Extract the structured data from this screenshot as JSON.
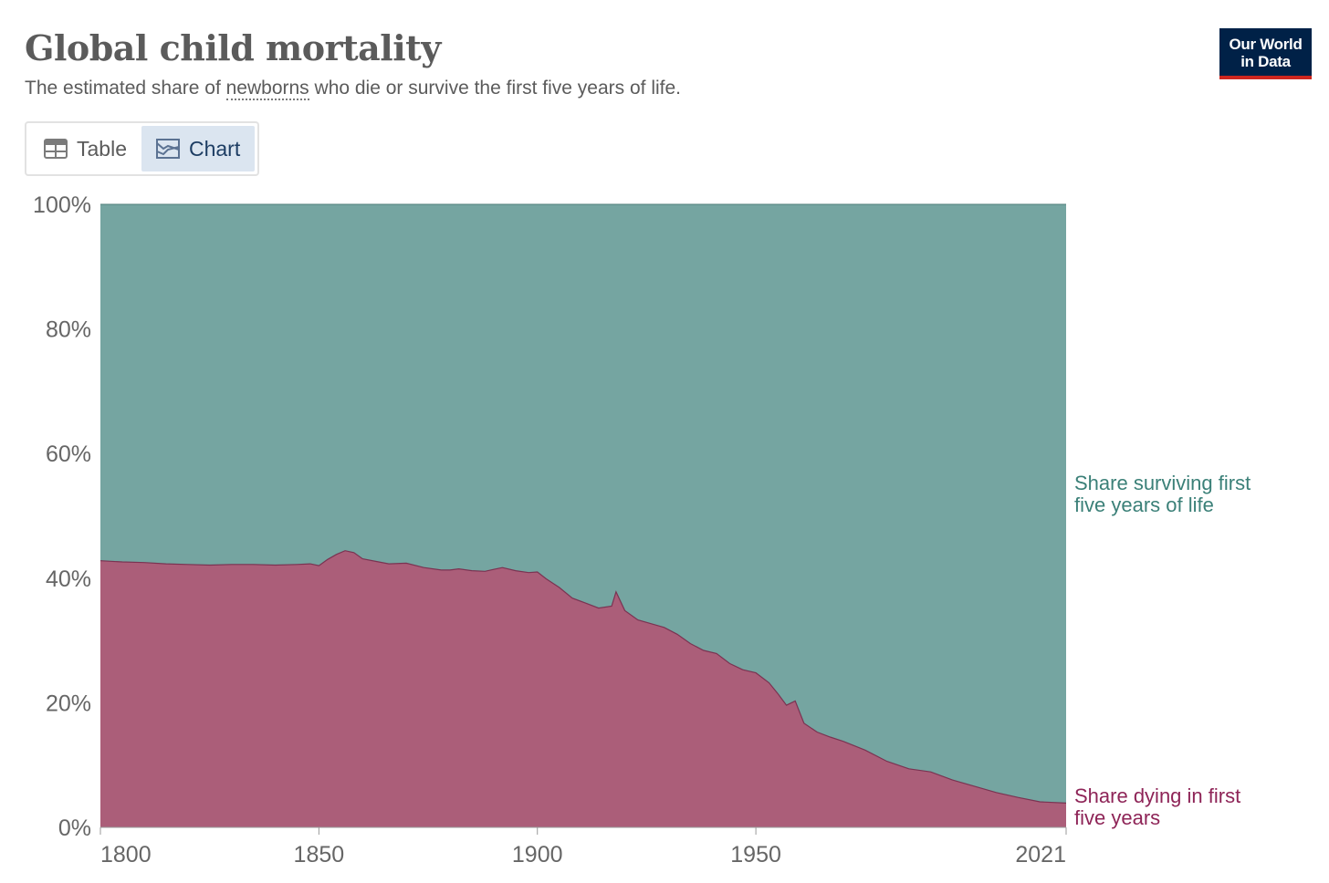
{
  "header": {
    "title": "Global child mortality",
    "subtitle_before": "The estimated share of ",
    "subtitle_term": "newborns",
    "subtitle_after": " who die or survive the first five years of life.",
    "logo_line1": "Our World",
    "logo_line2": "in Data"
  },
  "tabs": [
    {
      "label": "Table",
      "icon": "table-icon",
      "active": false
    },
    {
      "label": "Chart",
      "icon": "chart-icon",
      "active": true
    }
  ],
  "colors": {
    "surviving": "#75a5a1",
    "dying": "#ab5e79",
    "surviving_label": "#3b8078",
    "dying_label": "#8e2457"
  },
  "chart_data": {
    "type": "area",
    "stacked": true,
    "relative": true,
    "ylim": [
      0,
      100
    ],
    "xlim": [
      1800,
      2021
    ],
    "y_ticks": [
      "0%",
      "20%",
      "40%",
      "60%",
      "80%",
      "100%"
    ],
    "x_ticks": [
      "1800",
      "1850",
      "1900",
      "1950",
      "2021"
    ],
    "grid": true,
    "legend": "right, inline labels",
    "series": [
      {
        "name": "Share dying in first five years",
        "x": [
          1800,
          1805,
          1810,
          1815,
          1820,
          1825,
          1830,
          1835,
          1840,
          1845,
          1848,
          1850,
          1852,
          1854,
          1856,
          1858,
          1860,
          1863,
          1866,
          1870,
          1874,
          1878,
          1880,
          1882,
          1885,
          1888,
          1890,
          1892,
          1895,
          1898,
          1900,
          1902,
          1905,
          1908,
          1911,
          1914,
          1917,
          1918,
          1920,
          1923,
          1926,
          1929,
          1932,
          1935,
          1938,
          1941,
          1944,
          1947,
          1950,
          1953,
          1955,
          1957,
          1959,
          1961,
          1964,
          1967,
          1970,
          1975,
          1980,
          1985,
          1990,
          1995,
          2000,
          2005,
          2010,
          2015,
          2021
        ],
        "values": [
          42.8,
          42.6,
          42.5,
          42.3,
          42.2,
          42.1,
          42.2,
          42.2,
          42.1,
          42.2,
          42.3,
          42.0,
          43.0,
          43.8,
          44.4,
          44.1,
          43.1,
          42.7,
          42.3,
          42.4,
          41.7,
          41.3,
          41.3,
          41.5,
          41.2,
          41.1,
          41.4,
          41.7,
          41.2,
          40.9,
          41.0,
          39.9,
          38.5,
          36.8,
          36.0,
          35.2,
          35.5,
          37.8,
          34.8,
          33.3,
          32.7,
          32.1,
          31.0,
          29.5,
          28.4,
          27.9,
          26.3,
          25.3,
          24.8,
          23.2,
          21.5,
          19.6,
          20.3,
          16.7,
          15.3,
          14.5,
          13.8,
          12.4,
          10.6,
          9.4,
          8.9,
          7.6,
          6.6,
          5.6,
          4.8,
          4.1,
          3.9
        ]
      },
      {
        "name": "Share surviving first five years of life",
        "values": "complement to 100%"
      }
    ]
  },
  "labels": {
    "surviving": "Share surviving first five years of life",
    "dying": "Share dying in first five years"
  }
}
